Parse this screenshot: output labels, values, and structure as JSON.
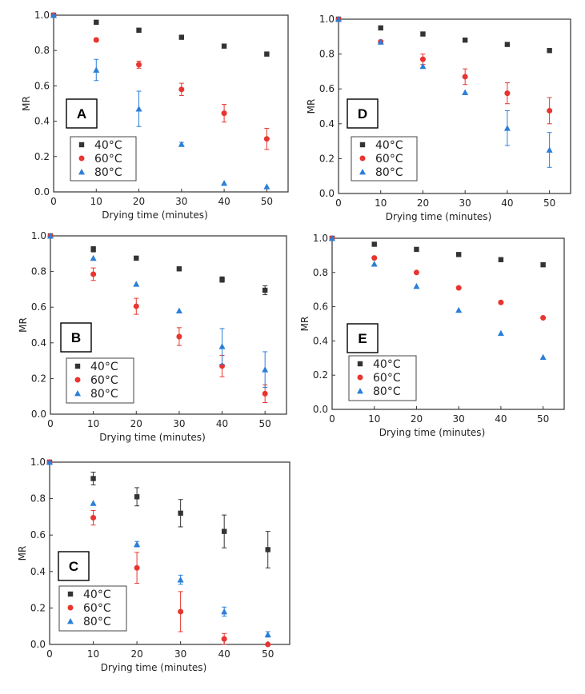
{
  "chart_data": [
    {
      "type": "scatter",
      "panel_label": "A",
      "xlabel": "Drying time (minutes)",
      "ylabel": "MR",
      "xlim": [
        0,
        55
      ],
      "ylim": [
        0,
        1.0
      ],
      "xticks": [
        "0",
        "10",
        "20",
        "30",
        "40",
        "50"
      ],
      "yticks": [
        "0.0",
        "0.2",
        "0.4",
        "0.6",
        "0.8",
        "1.0"
      ],
      "legend_position": "bottom-left",
      "series": [
        {
          "name": "40°C",
          "marker": "square",
          "color": "#333333",
          "x": [
            0,
            10,
            20,
            30,
            40,
            50
          ],
          "y": [
            1.0,
            0.96,
            0.915,
            0.875,
            0.825,
            0.78
          ],
          "err": [
            0,
            0,
            0,
            0,
            0,
            0
          ]
        },
        {
          "name": "60°C",
          "marker": "circle",
          "color": "#e8352f",
          "x": [
            0,
            10,
            20,
            30,
            40,
            50
          ],
          "y": [
            1.0,
            0.86,
            0.72,
            0.58,
            0.445,
            0.3
          ],
          "err": [
            0,
            0.01,
            0.02,
            0.035,
            0.05,
            0.06
          ]
        },
        {
          "name": "80°C",
          "marker": "triangle",
          "color": "#2b7fd8",
          "x": [
            0,
            10,
            20,
            30,
            40,
            50
          ],
          "y": [
            1.0,
            0.69,
            0.47,
            0.27,
            0.05,
            0.03
          ],
          "err": [
            0,
            0.06,
            0.1,
            0.01,
            0,
            0
          ]
        }
      ]
    },
    {
      "type": "scatter",
      "panel_label": "D",
      "xlabel": "Drying time (minutes)",
      "ylabel": "MR",
      "xlim": [
        0,
        55
      ],
      "ylim": [
        0,
        1.0
      ],
      "xticks": [
        "0",
        "10",
        "20",
        "30",
        "40",
        "50"
      ],
      "yticks": [
        "0.0",
        "0.2",
        "0.4",
        "0.6",
        "0.8",
        "1.0"
      ],
      "legend_position": "bottom-left",
      "series": [
        {
          "name": "40°C",
          "marker": "square",
          "color": "#333333",
          "x": [
            0,
            10,
            20,
            30,
            40,
            50
          ],
          "y": [
            1.0,
            0.95,
            0.915,
            0.88,
            0.855,
            0.82
          ],
          "err": [
            0,
            0,
            0,
            0,
            0,
            0
          ]
        },
        {
          "name": "60°C",
          "marker": "circle",
          "color": "#e8352f",
          "x": [
            0,
            10,
            20,
            30,
            40,
            50
          ],
          "y": [
            1.0,
            0.87,
            0.77,
            0.67,
            0.575,
            0.475
          ],
          "err": [
            0,
            0.01,
            0.03,
            0.045,
            0.06,
            0.075
          ]
        },
        {
          "name": "80°C",
          "marker": "triangle",
          "color": "#2b7fd8",
          "x": [
            0,
            10,
            20,
            30,
            40,
            50
          ],
          "y": [
            1.0,
            0.87,
            0.73,
            0.58,
            0.375,
            0.25
          ],
          "err": [
            0,
            0,
            0,
            0,
            0.1,
            0.1
          ]
        }
      ]
    },
    {
      "type": "scatter",
      "panel_label": "B",
      "xlabel": "Drying time (minutes)",
      "ylabel": "MR",
      "xlim": [
        0,
        55
      ],
      "ylim": [
        0,
        1.0
      ],
      "xticks": [
        "0",
        "10",
        "20",
        "30",
        "40",
        "50"
      ],
      "yticks": [
        "0.0",
        "0.2",
        "0.4",
        "0.6",
        "0.8",
        "1.0"
      ],
      "legend_position": "bottom-left",
      "series": [
        {
          "name": "40°C",
          "marker": "square",
          "color": "#333333",
          "x": [
            0,
            10,
            20,
            30,
            40,
            50
          ],
          "y": [
            1.0,
            0.925,
            0.875,
            0.815,
            0.755,
            0.695
          ],
          "err": [
            0,
            0.015,
            0,
            0,
            0.015,
            0.025
          ]
        },
        {
          "name": "60°C",
          "marker": "circle",
          "color": "#e8352f",
          "x": [
            0,
            10,
            20,
            30,
            40,
            50
          ],
          "y": [
            1.0,
            0.785,
            0.605,
            0.435,
            0.27,
            0.115
          ],
          "err": [
            0,
            0.035,
            0.045,
            0.05,
            0.06,
            0.05
          ]
        },
        {
          "name": "80°C",
          "marker": "triangle",
          "color": "#2b7fd8",
          "x": [
            0,
            10,
            20,
            30,
            40,
            50
          ],
          "y": [
            1.0,
            0.875,
            0.73,
            0.58,
            0.38,
            0.25
          ],
          "err": [
            0,
            0,
            0,
            0,
            0.1,
            0.1
          ]
        }
      ]
    },
    {
      "type": "scatter",
      "panel_label": "E",
      "xlabel": "Drying time (minutes)",
      "ylabel": "MR",
      "xlim": [
        0,
        55
      ],
      "ylim": [
        0,
        1.0
      ],
      "xticks": [
        "0",
        "10",
        "20",
        "30",
        "40",
        "50"
      ],
      "yticks": [
        "0.0",
        "0.2",
        "0.4",
        "0.6",
        "0.8",
        "1.0"
      ],
      "legend_position": "bottom-left",
      "series": [
        {
          "name": "40°C",
          "marker": "square",
          "color": "#333333",
          "x": [
            0,
            10,
            20,
            30,
            40,
            50
          ],
          "y": [
            1.0,
            0.965,
            0.935,
            0.905,
            0.875,
            0.845
          ],
          "err": [
            0,
            0,
            0,
            0,
            0,
            0
          ]
        },
        {
          "name": "60°C",
          "marker": "circle",
          "color": "#e8352f",
          "x": [
            0,
            10,
            20,
            30,
            40,
            50
          ],
          "y": [
            1.0,
            0.885,
            0.8,
            0.71,
            0.625,
            0.535
          ],
          "err": [
            0,
            0,
            0,
            0,
            0,
            0
          ]
        },
        {
          "name": "80°C",
          "marker": "triangle",
          "color": "#2b7fd8",
          "x": [
            0,
            10,
            20,
            30,
            40,
            50
          ],
          "y": [
            1.0,
            0.85,
            0.72,
            0.58,
            0.445,
            0.305
          ],
          "err": [
            0,
            0,
            0,
            0,
            0,
            0
          ]
        }
      ]
    },
    {
      "type": "scatter",
      "panel_label": "C",
      "xlabel": "Drying time (minutes)",
      "ylabel": "MR",
      "xlim": [
        0,
        55
      ],
      "ylim": [
        0,
        1.0
      ],
      "xticks": [
        "0",
        "10",
        "20",
        "30",
        "40",
        "50"
      ],
      "yticks": [
        "0.0",
        "0.2",
        "0.4",
        "0.6",
        "0.8",
        "1.0"
      ],
      "legend_position": "bottom-left",
      "series": [
        {
          "name": "40°C",
          "marker": "square",
          "color": "#333333",
          "x": [
            0,
            10,
            20,
            30,
            40,
            50
          ],
          "y": [
            1.0,
            0.91,
            0.81,
            0.72,
            0.62,
            0.52
          ],
          "err": [
            0,
            0.035,
            0.05,
            0.075,
            0.09,
            0.1
          ]
        },
        {
          "name": "60°C",
          "marker": "circle",
          "color": "#e8352f",
          "x": [
            0,
            10,
            20,
            30,
            40,
            50
          ],
          "y": [
            1.0,
            0.695,
            0.42,
            0.18,
            0.03,
            0.0
          ],
          "err": [
            0,
            0.04,
            0.085,
            0.11,
            0.03,
            0
          ]
        },
        {
          "name": "80°C",
          "marker": "triangle",
          "color": "#2b7fd8",
          "x": [
            0,
            10,
            20,
            30,
            40,
            50
          ],
          "y": [
            1.0,
            0.775,
            0.55,
            0.355,
            0.18,
            0.055
          ],
          "err": [
            0,
            0,
            0.015,
            0.025,
            0.025,
            0.015
          ]
        }
      ]
    }
  ]
}
